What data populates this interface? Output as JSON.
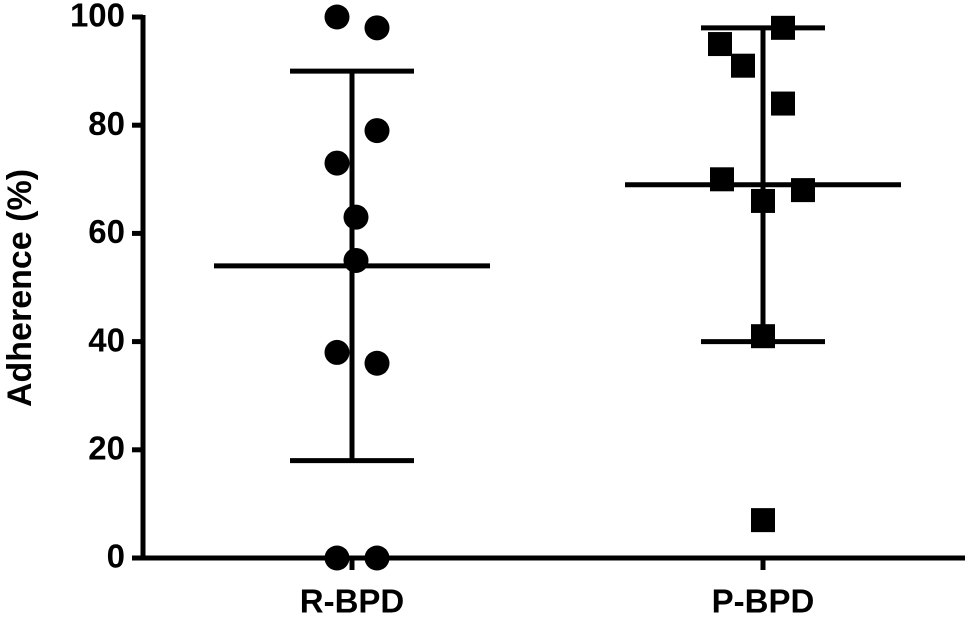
{
  "chart_data": {
    "type": "dot",
    "y_label": "Adherence (%)",
    "categories": [
      "R-BPD",
      "P-BPD"
    ],
    "groups": [
      {
        "marker": "circle",
        "values": [
          100,
          98,
          79,
          73,
          63,
          55,
          38,
          36,
          0,
          0
        ],
        "mean": 54,
        "sd": 36
      },
      {
        "marker": "square",
        "values": [
          95,
          98,
          91,
          84,
          70,
          66,
          68,
          41,
          7
        ],
        "mean": 69,
        "sd": 29
      }
    ],
    "color": "#000000",
    "ylim": [
      0,
      100
    ],
    "yticks": [
      0,
      20,
      40,
      60,
      80,
      100
    ]
  }
}
